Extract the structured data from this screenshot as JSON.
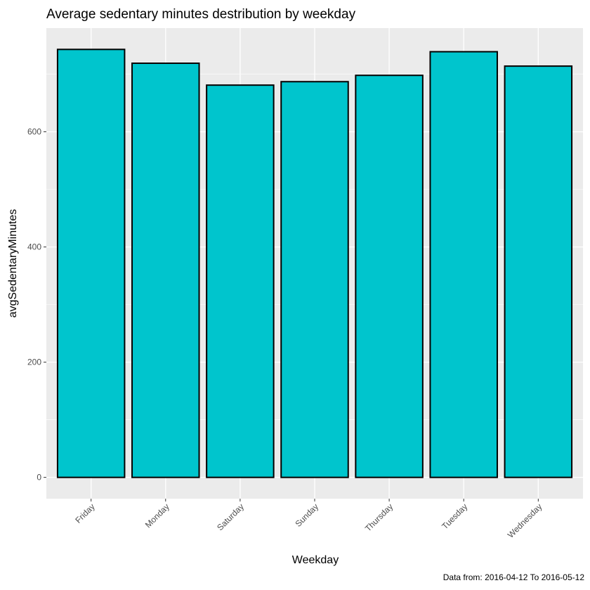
{
  "chart_data": {
    "type": "bar",
    "title": "Average sedentary minutes destribution by weekday",
    "xlabel": "Weekday",
    "ylabel": "avgSedentaryMinutes",
    "caption": "Data from: 2016-04-12 To 2016-05-12",
    "categories": [
      "Friday",
      "Monday",
      "Saturday",
      "Sunday",
      "Thursday",
      "Tuesday",
      "Wednesday"
    ],
    "values": [
      743,
      719,
      681,
      687,
      698,
      739,
      714
    ],
    "ylim": [
      -37,
      780
    ],
    "yticks": [
      0,
      200,
      400,
      600
    ],
    "ytick_labels": [
      "0",
      "200",
      "400",
      "600"
    ],
    "minor_yticks": [
      100,
      300,
      500,
      700
    ],
    "grid": true,
    "colors": {
      "bar_fill": "#00C5CD",
      "bar_stroke": "#000000",
      "panel": "#EBEBEB",
      "grid": "#FFFFFF"
    }
  }
}
